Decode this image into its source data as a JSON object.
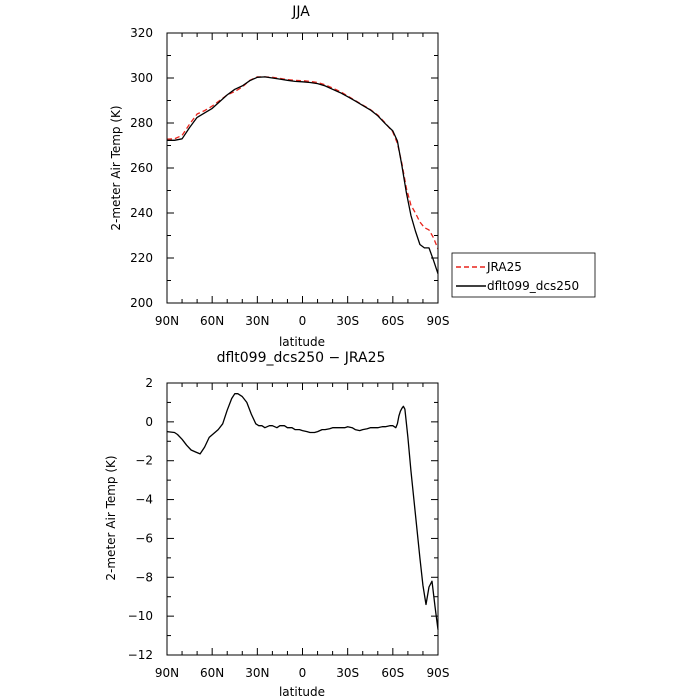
{
  "chart_data": [
    {
      "type": "line",
      "title": "JJA",
      "xlabel": "latitude",
      "ylabel": "2-meter Air Temp (K)",
      "xlim": [
        90,
        -90
      ],
      "ylim": [
        200,
        320
      ],
      "xticks": [
        90,
        60,
        30,
        0,
        -30,
        -60,
        -90
      ],
      "xtick_labels": [
        "90N",
        "60N",
        "30N",
        "0",
        "30S",
        "60S",
        "90S"
      ],
      "yticks": [
        200,
        220,
        240,
        260,
        280,
        300,
        320
      ],
      "ytick_labels": [
        "200",
        "220",
        "240",
        "260",
        "280",
        "300",
        "320"
      ],
      "grid": false,
      "legend_position": "right, outside plot",
      "series": [
        {
          "name": "JRA25",
          "color": "#e8241c",
          "dash": "dashed",
          "x": [
            90,
            85,
            80,
            75,
            70,
            65,
            60,
            55,
            50,
            45,
            40,
            35,
            30,
            25,
            20,
            15,
            10,
            5,
            0,
            -5,
            -10,
            -15,
            -20,
            -25,
            -30,
            -35,
            -40,
            -45,
            -50,
            -55,
            -60,
            -63,
            -66,
            -69,
            -72,
            -75,
            -78,
            -81,
            -84,
            -87,
            -90
          ],
          "values": [
            272.8,
            273.0,
            274.5,
            279.5,
            284.0,
            285.5,
            287.5,
            290.0,
            292.5,
            294.0,
            296.0,
            299.0,
            300.5,
            300.5,
            300.3,
            299.8,
            299.3,
            299.0,
            298.8,
            298.5,
            298.0,
            297.0,
            295.5,
            294.0,
            292.0,
            290.0,
            288.0,
            286.0,
            283.5,
            280.0,
            276.0,
            271.0,
            262.0,
            251.0,
            243.5,
            240.0,
            236.0,
            233.5,
            232.5,
            229.0,
            224.0
          ]
        },
        {
          "name": "dflt099_dcs250",
          "color": "#000000",
          "dash": "solid",
          "x": [
            90,
            85,
            80,
            75,
            70,
            65,
            60,
            55,
            50,
            45,
            40,
            35,
            30,
            25,
            20,
            15,
            10,
            5,
            0,
            -5,
            -10,
            -15,
            -20,
            -25,
            -30,
            -35,
            -40,
            -45,
            -50,
            -55,
            -60,
            -63,
            -66,
            -69,
            -72,
            -75,
            -78,
            -81,
            -84,
            -87,
            -90
          ],
          "values": [
            272.3,
            272.3,
            273.0,
            278.0,
            282.5,
            284.5,
            286.5,
            289.5,
            292.5,
            295.0,
            296.5,
            298.8,
            300.3,
            300.5,
            300.0,
            299.5,
            299.0,
            298.5,
            298.3,
            298.0,
            297.5,
            296.5,
            295.0,
            293.5,
            291.7,
            289.8,
            287.8,
            285.8,
            283.2,
            279.7,
            276.5,
            272.0,
            261.0,
            249.0,
            239.0,
            232.0,
            226.0,
            224.5,
            224.5,
            219.0,
            213.0
          ]
        }
      ]
    },
    {
      "type": "line",
      "title": "dflt099_dcs250 − JRA25",
      "xlabel": "latitude",
      "ylabel": "2-meter Air Temp (K)",
      "xlim": [
        90,
        -90
      ],
      "ylim": [
        -12,
        2
      ],
      "xticks": [
        90,
        60,
        30,
        0,
        -30,
        -60,
        -90
      ],
      "xtick_labels": [
        "90N",
        "60N",
        "30N",
        "0",
        "30S",
        "60S",
        "90S"
      ],
      "yticks": [
        -12,
        -10,
        -8,
        -6,
        -4,
        -2,
        0,
        2
      ],
      "ytick_labels": [
        "−12",
        "−10",
        "−8",
        "−6",
        "−4",
        "−2",
        "0",
        "2"
      ],
      "grid": false,
      "series": [
        {
          "color": "#000000",
          "dash": "solid",
          "x": [
            90,
            85,
            83,
            80,
            77,
            74,
            71,
            68,
            65,
            62,
            59,
            56,
            53,
            50,
            47,
            45,
            43,
            40,
            37,
            34,
            31,
            29,
            27,
            25,
            22,
            20,
            17,
            15,
            12,
            10,
            7,
            5,
            2,
            0,
            -3,
            -5,
            -8,
            -10,
            -13,
            -15,
            -18,
            -20,
            -23,
            -25,
            -28,
            -30,
            -33,
            -35,
            -38,
            -40,
            -43,
            -45,
            -48,
            -50,
            -53,
            -55,
            -58,
            -60,
            -61,
            -62,
            -63,
            -64,
            -65,
            -66,
            -67,
            -68,
            -70,
            -72,
            -74,
            -76,
            -78,
            -80,
            -82,
            -84,
            -86,
            -88,
            -90
          ],
          "values": [
            -0.5,
            -0.55,
            -0.65,
            -0.9,
            -1.2,
            -1.45,
            -1.55,
            -1.65,
            -1.3,
            -0.8,
            -0.6,
            -0.4,
            -0.1,
            0.6,
            1.2,
            1.45,
            1.45,
            1.3,
            1.0,
            0.4,
            -0.1,
            -0.2,
            -0.2,
            -0.3,
            -0.2,
            -0.2,
            -0.3,
            -0.2,
            -0.2,
            -0.3,
            -0.3,
            -0.4,
            -0.4,
            -0.45,
            -0.5,
            -0.55,
            -0.55,
            -0.5,
            -0.4,
            -0.4,
            -0.35,
            -0.3,
            -0.3,
            -0.3,
            -0.3,
            -0.25,
            -0.3,
            -0.4,
            -0.45,
            -0.4,
            -0.35,
            -0.3,
            -0.3,
            -0.3,
            -0.25,
            -0.25,
            -0.2,
            -0.2,
            -0.25,
            -0.3,
            -0.1,
            0.3,
            0.55,
            0.7,
            0.8,
            0.65,
            -0.8,
            -2.5,
            -4.0,
            -5.5,
            -7.0,
            -8.4,
            -9.4,
            -8.5,
            -8.2,
            -9.5,
            -10.7
          ]
        }
      ]
    }
  ]
}
